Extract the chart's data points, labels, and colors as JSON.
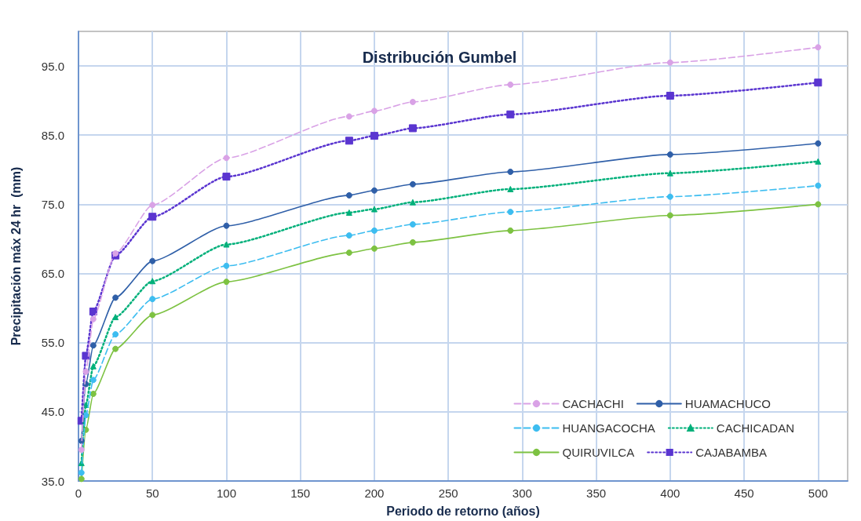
{
  "chart_data": {
    "type": "line",
    "title": "Distribución Gumbel",
    "xlabel": "Periodo de retorno (años)",
    "ylabel": "Precipitación máx 24 hr  (mm)",
    "x": [
      2,
      5,
      10,
      25,
      50,
      100,
      183,
      200,
      226,
      292,
      400,
      500
    ],
    "series": [
      {
        "name": "CACHACHI",
        "color": "#d9a2e6",
        "marker": "circle",
        "line_style": "dashed",
        "values": [
          39.5,
          50.8,
          58.4,
          67.9,
          74.9,
          81.7,
          87.7,
          88.5,
          89.8,
          92.3,
          95.5,
          97.7
        ]
      },
      {
        "name": "HUAMACHUCO",
        "color": "#2f5fa8",
        "marker": "circle",
        "line_style": "solid",
        "values": [
          40.8,
          49.0,
          54.6,
          61.5,
          66.8,
          71.9,
          76.3,
          77.0,
          77.9,
          79.7,
          82.2,
          83.8
        ]
      },
      {
        "name": "HUANGACOCHA",
        "color": "#3dbdf0",
        "marker": "circle",
        "line_style": "dashed",
        "values": [
          36.2,
          44.5,
          49.6,
          56.2,
          61.3,
          66.1,
          70.5,
          71.2,
          72.1,
          73.9,
          76.1,
          77.7
        ]
      },
      {
        "name": "CACHICADAN",
        "color": "#00b07a",
        "marker": "triangle",
        "line_style": "dotted",
        "values": [
          37.6,
          46.0,
          51.6,
          58.7,
          63.9,
          69.2,
          73.8,
          74.3,
          75.3,
          77.2,
          79.5,
          81.2
        ]
      },
      {
        "name": "QUIRUVILCA",
        "color": "#7dc242",
        "marker": "circle",
        "line_style": "solid",
        "values": [
          35.3,
          42.4,
          47.6,
          54.1,
          59.0,
          63.8,
          68.0,
          68.6,
          69.5,
          71.2,
          73.4,
          75.0
        ]
      },
      {
        "name": "CAJABAMBA",
        "color": "#5a35d0",
        "marker": "square",
        "line_style": "dotted",
        "values": [
          43.7,
          53.1,
          59.5,
          67.6,
          73.2,
          79.0,
          84.2,
          84.9,
          86.0,
          88.0,
          90.7,
          92.6
        ]
      }
    ],
    "xlim": [
      0,
      520
    ],
    "xticks": [
      0,
      50,
      100,
      150,
      200,
      250,
      300,
      350,
      400,
      450,
      500
    ],
    "ylim": [
      35,
      100
    ],
    "yticks": [
      {
        "value": 35,
        "label": "35.0"
      },
      {
        "value": 45,
        "label": "45.0"
      },
      {
        "value": 55,
        "label": "55.0"
      },
      {
        "value": 65,
        "label": "65.0"
      },
      {
        "value": 75,
        "label": "75.0"
      },
      {
        "value": 85,
        "label": "85.0"
      },
      {
        "value": 95,
        "label": "95.0"
      }
    ],
    "grid": true,
    "legend": "bottom right"
  }
}
